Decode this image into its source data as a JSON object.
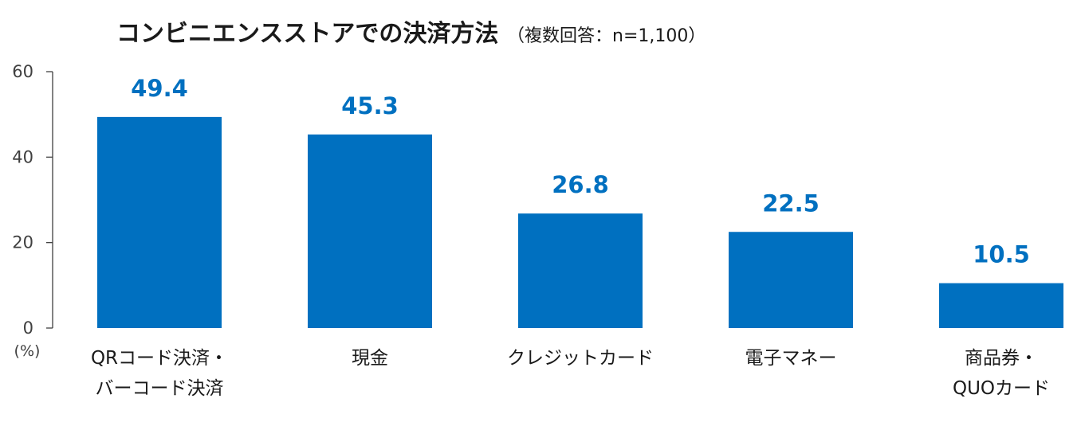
{
  "title": "コンビニエンスストアでの決済方法",
  "subtitle": "（複数回答：n=1,100）",
  "unit_label": "(%)",
  "colors": {
    "bar": "#0070C0",
    "value_label": "#0070C0",
    "axis": "#404040"
  },
  "chart_data": {
    "type": "bar",
    "title": "コンビニエンスストアでの決済方法",
    "subtitle": "（複数回答：n=1,100）",
    "categories": [
      [
        "QRコード決済・",
        "バーコード決済"
      ],
      [
        "現金"
      ],
      [
        "クレジットカード"
      ],
      [
        "電子マネー"
      ],
      [
        "商品券・",
        "QUOカード"
      ]
    ],
    "values": [
      49.4,
      45.3,
      26.8,
      22.5,
      10.5
    ],
    "value_labels": [
      "49.4",
      "45.3",
      "26.8",
      "22.5",
      "10.5"
    ],
    "ylim": [
      0,
      60
    ],
    "yticks": [
      0,
      20,
      40,
      60
    ],
    "ylabel": "(%)",
    "xlabel": "",
    "grid": false,
    "legend": "none"
  }
}
